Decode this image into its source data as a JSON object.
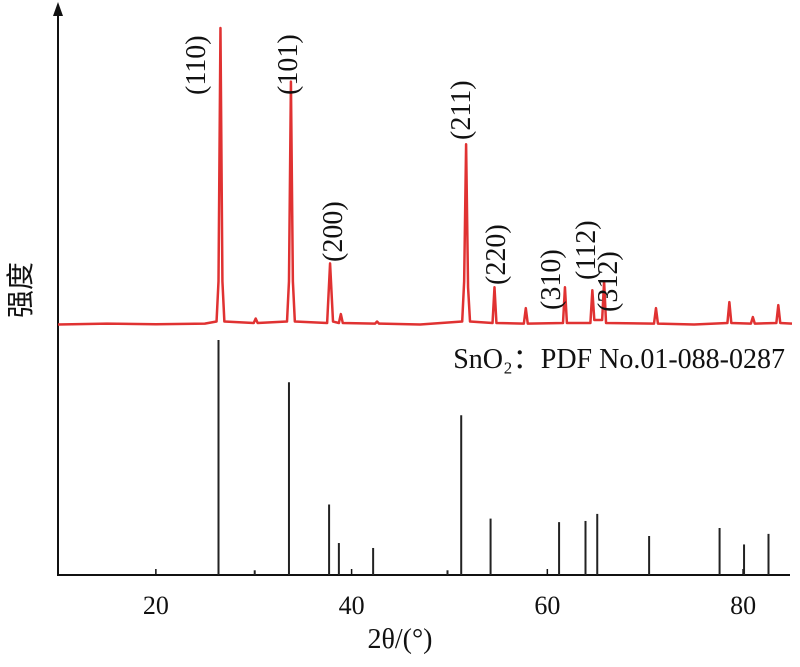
{
  "chart_data": [
    {
      "type": "line",
      "ylabel": "强度",
      "x": [
        10,
        15,
        20,
        25,
        26.2,
        26.4,
        26.6,
        26.8,
        27.0,
        30.0,
        30.2,
        30.4,
        33.4,
        33.6,
        33.8,
        34.0,
        34.2,
        37.5,
        37.8,
        38.1,
        38.7,
        38.9,
        39.1,
        42.4,
        42.6,
        42.8,
        47,
        51.3,
        51.5,
        51.7,
        51.9,
        52.1,
        54.4,
        54.6,
        54.8,
        57.6,
        57.8,
        58.0,
        61.6,
        61.8,
        62.0,
        64.4,
        64.6,
        64.8,
        65.6,
        65.8,
        66.0,
        70.9,
        71.1,
        71.3,
        75,
        78.4,
        78.6,
        78.8,
        80.8,
        81.0,
        81.2,
        83.4,
        83.6,
        83.8,
        85
      ],
      "series": [
        {
          "color": "#e03232",
          "values": [
            0.5,
            0.8,
            0.6,
            0.8,
            1.5,
            15,
            100,
            15,
            1.5,
            1,
            2.5,
            1,
            1.5,
            15,
            82,
            15,
            1.5,
            1,
            21,
            1.5,
            1,
            4,
            1,
            0.8,
            1.5,
            0.8,
            0.5,
            1.5,
            15,
            61,
            13,
            1.5,
            1,
            13,
            1,
            0.8,
            6,
            0.8,
            1,
            13,
            1,
            1,
            12,
            2,
            2,
            15,
            1,
            0.8,
            6,
            0.8,
            0.5,
            1,
            8,
            1,
            0.8,
            3,
            0.8,
            1,
            7,
            1,
            0.8
          ]
        }
      ],
      "ylim": [
        0,
        100
      ],
      "annotations": [
        "(110)",
        "(101)",
        "(200)",
        "(211)",
        "(220)",
        "(310)",
        "(112)",
        "(312)"
      ]
    },
    {
      "type": "stick",
      "annotation": "SnO₂：PDF No.01-088-0287",
      "xlabel": "2θ/(°)",
      "x": [
        26.4,
        30.1,
        33.6,
        37.7,
        38.7,
        42.2,
        49.8,
        51.2,
        54.2,
        61.2,
        63.9,
        65.1,
        70.4,
        77.6,
        80.1,
        82.6
      ],
      "values": [
        100,
        2,
        82,
        30,
        13.6,
        11.5,
        2,
        68,
        24,
        22.5,
        23,
        26,
        16.6,
        20,
        13,
        17.5
      ],
      "color": "#222222",
      "xlim": [
        10,
        85
      ],
      "xticks": [
        20,
        40,
        60,
        80
      ],
      "ylim": [
        0,
        100
      ]
    }
  ]
}
